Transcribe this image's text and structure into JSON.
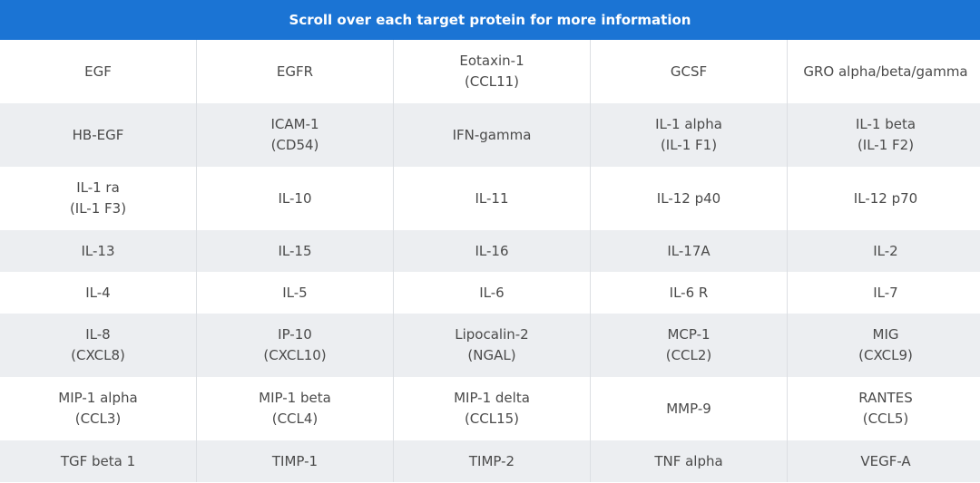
{
  "header": {
    "title": "Scroll over each target protein for more information"
  },
  "table": {
    "rows": [
      [
        [
          "EGF"
        ],
        [
          "EGFR"
        ],
        [
          "Eotaxin-1",
          "(CCL11)"
        ],
        [
          "GCSF"
        ],
        [
          "GRO alpha/beta/gamma"
        ]
      ],
      [
        [
          "HB-EGF"
        ],
        [
          "ICAM-1",
          "(CD54)"
        ],
        [
          "IFN-gamma"
        ],
        [
          "IL-1 alpha",
          "(IL-1 F1)"
        ],
        [
          "IL-1 beta",
          "(IL-1 F2)"
        ]
      ],
      [
        [
          "IL-1 ra",
          "(IL-1 F3)"
        ],
        [
          "IL-10"
        ],
        [
          "IL-11"
        ],
        [
          "IL-12 p40"
        ],
        [
          "IL-12 p70"
        ]
      ],
      [
        [
          "IL-13"
        ],
        [
          "IL-15"
        ],
        [
          "IL-16"
        ],
        [
          "IL-17A"
        ],
        [
          "IL-2"
        ]
      ],
      [
        [
          "IL-4"
        ],
        [
          "IL-5"
        ],
        [
          "IL-6"
        ],
        [
          "IL-6 R"
        ],
        [
          "IL-7"
        ]
      ],
      [
        [
          "IL-8",
          "(CXCL8)"
        ],
        [
          "IP-10",
          "(CXCL10)"
        ],
        [
          "Lipocalin-2",
          "(NGAL)"
        ],
        [
          "MCP-1",
          "(CCL2)"
        ],
        [
          "MIG",
          "(CXCL9)"
        ]
      ],
      [
        [
          "MIP-1 alpha",
          "(CCL3)"
        ],
        [
          "MIP-1 beta",
          "(CCL4)"
        ],
        [
          "MIP-1 delta",
          "(CCL15)"
        ],
        [
          "MMP-9"
        ],
        [
          "RANTES",
          "(CCL5)"
        ]
      ],
      [
        [
          "TGF beta 1"
        ],
        [
          "TIMP-1"
        ],
        [
          "TIMP-2"
        ],
        [
          "TNF alpha"
        ],
        [
          "VEGF-A"
        ]
      ]
    ]
  }
}
